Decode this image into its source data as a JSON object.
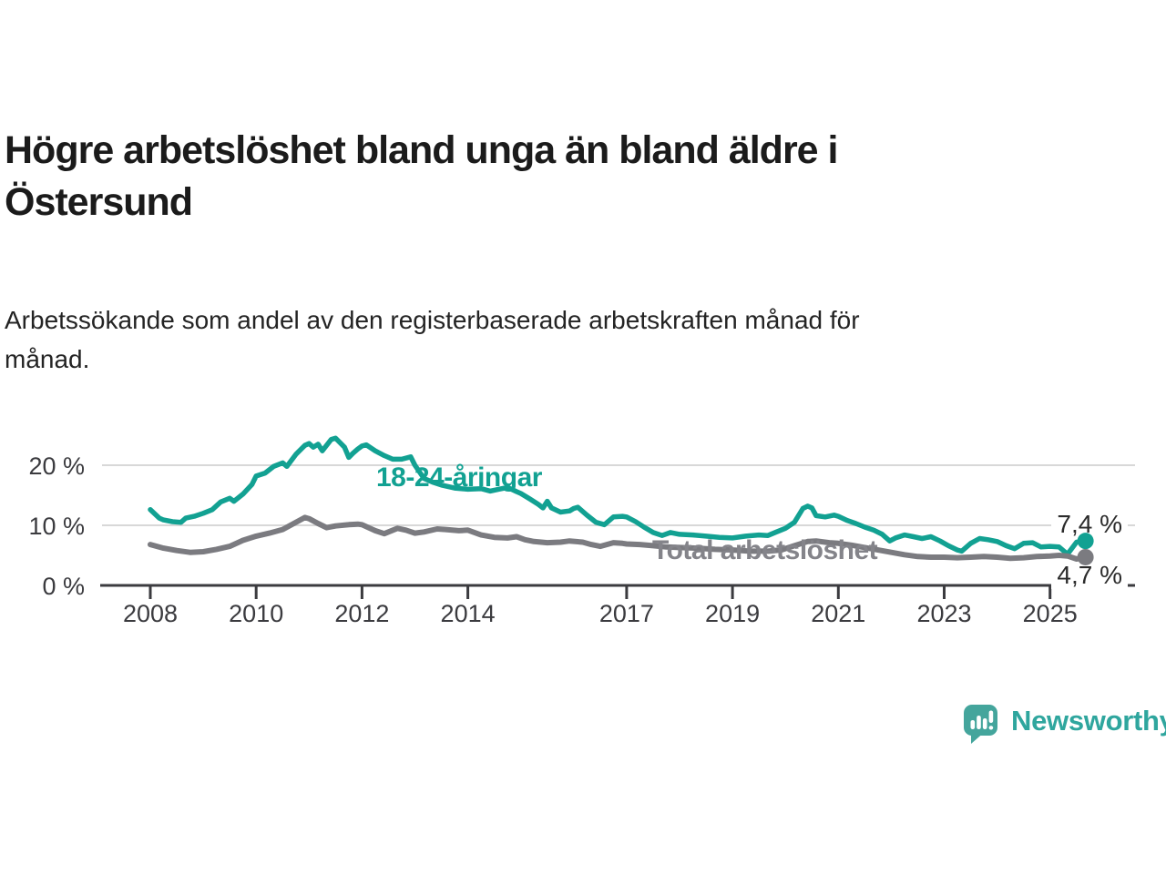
{
  "chart_data": {
    "type": "line",
    "title": "Högre arbetslöshet bland unga än bland äldre i\nÖstersund",
    "subtitle": "Arbetssökande som andel av den registerbaserade arbetskraften månad för\nmånad.",
    "unit": "%",
    "xlim": [
      2008,
      2025.75
    ],
    "ylim": [
      0,
      26
    ],
    "grid": "horizontal-only",
    "x_ticks": [
      2008,
      2010,
      2012,
      2014,
      2017,
      2019,
      2021,
      2023,
      2025
    ],
    "y_ticks": [
      {
        "value": 0,
        "label": "0 %"
      },
      {
        "value": 10,
        "label": "10 %"
      },
      {
        "value": 20,
        "label": "20 %"
      }
    ],
    "y_gridlines": [
      10,
      20
    ],
    "colors": {
      "young_line": "#12a192",
      "total_line": "#7b7b80",
      "total_label": "#84848a",
      "axis": "#3b3b3f",
      "gridline": "#d8d8d8"
    },
    "series": [
      {
        "name": "18-24-åringar",
        "color": "#12a192",
        "end_value": 7.4,
        "end_label": "7,4 %",
        "points": [
          [
            2008,
            12.6
          ],
          [
            2008.17,
            11.2
          ],
          [
            2008.25,
            10.9
          ],
          [
            2008.42,
            10.6
          ],
          [
            2008.58,
            10.5
          ],
          [
            2008.67,
            11.2
          ],
          [
            2008.83,
            11.5
          ],
          [
            2009,
            12
          ],
          [
            2009.17,
            12.6
          ],
          [
            2009.33,
            13.9
          ],
          [
            2009.5,
            14.5
          ],
          [
            2009.58,
            14
          ],
          [
            2009.75,
            15.2
          ],
          [
            2009.92,
            16.8
          ],
          [
            2010,
            18.2
          ],
          [
            2010.17,
            18.7
          ],
          [
            2010.33,
            19.8
          ],
          [
            2010.5,
            20.4
          ],
          [
            2010.58,
            19.8
          ],
          [
            2010.75,
            21.8
          ],
          [
            2010.92,
            23.3
          ],
          [
            2011,
            23.6
          ],
          [
            2011.08,
            23
          ],
          [
            2011.17,
            23.5
          ],
          [
            2011.25,
            22.4
          ],
          [
            2011.42,
            24.3
          ],
          [
            2011.5,
            24.5
          ],
          [
            2011.58,
            23.8
          ],
          [
            2011.67,
            23
          ],
          [
            2011.75,
            21.3
          ],
          [
            2011.83,
            22
          ],
          [
            2011.92,
            22.7
          ],
          [
            2012,
            23.2
          ],
          [
            2012.08,
            23.4
          ],
          [
            2012.25,
            22.4
          ],
          [
            2012.42,
            21.6
          ],
          [
            2012.58,
            21
          ],
          [
            2012.75,
            21
          ],
          [
            2012.92,
            21.4
          ],
          [
            2013,
            20
          ],
          [
            2013.17,
            17.8
          ],
          [
            2013.33,
            17.2
          ],
          [
            2013.5,
            16.7
          ],
          [
            2013.75,
            16.2
          ],
          [
            2014,
            16
          ],
          [
            2014.25,
            16.1
          ],
          [
            2014.42,
            15.7
          ],
          [
            2014.58,
            16
          ],
          [
            2014.75,
            16.3
          ],
          [
            2014.92,
            15.6
          ],
          [
            2015,
            15.3
          ],
          [
            2015.17,
            14.4
          ],
          [
            2015.33,
            13.5
          ],
          [
            2015.42,
            12.9
          ],
          [
            2015.5,
            14
          ],
          [
            2015.58,
            12.9
          ],
          [
            2015.75,
            12.2
          ],
          [
            2015.92,
            12.4
          ],
          [
            2016,
            12.8
          ],
          [
            2016.08,
            13
          ],
          [
            2016.25,
            11.7
          ],
          [
            2016.42,
            10.5
          ],
          [
            2016.58,
            10.1
          ],
          [
            2016.75,
            11.4
          ],
          [
            2016.92,
            11.5
          ],
          [
            2017,
            11.4
          ],
          [
            2017.17,
            10.6
          ],
          [
            2017.33,
            9.7
          ],
          [
            2017.5,
            8.8
          ],
          [
            2017.67,
            8.3
          ],
          [
            2017.83,
            8.8
          ],
          [
            2018,
            8.5
          ],
          [
            2018.25,
            8.4
          ],
          [
            2018.5,
            8.2
          ],
          [
            2018.75,
            8
          ],
          [
            2019,
            7.9
          ],
          [
            2019.25,
            8.2
          ],
          [
            2019.5,
            8.4
          ],
          [
            2019.67,
            8.3
          ],
          [
            2019.83,
            8.9
          ],
          [
            2020,
            9.5
          ],
          [
            2020.17,
            10.5
          ],
          [
            2020.33,
            12.8
          ],
          [
            2020.42,
            13.2
          ],
          [
            2020.5,
            12.9
          ],
          [
            2020.58,
            11.6
          ],
          [
            2020.75,
            11.4
          ],
          [
            2020.92,
            11.7
          ],
          [
            2021,
            11.5
          ],
          [
            2021.17,
            10.8
          ],
          [
            2021.33,
            10.3
          ],
          [
            2021.5,
            9.7
          ],
          [
            2021.67,
            9.2
          ],
          [
            2021.83,
            8.5
          ],
          [
            2021.97,
            7.4
          ],
          [
            2022.08,
            7.9
          ],
          [
            2022.25,
            8.4
          ],
          [
            2022.42,
            8.1
          ],
          [
            2022.58,
            7.8
          ],
          [
            2022.75,
            8.1
          ],
          [
            2022.92,
            7.4
          ],
          [
            2023.08,
            6.6
          ],
          [
            2023.25,
            5.9
          ],
          [
            2023.33,
            5.7
          ],
          [
            2023.5,
            7
          ],
          [
            2023.67,
            7.8
          ],
          [
            2023.83,
            7.6
          ],
          [
            2024,
            7.3
          ],
          [
            2024.17,
            6.6
          ],
          [
            2024.33,
            6.1
          ],
          [
            2024.5,
            7
          ],
          [
            2024.67,
            7.1
          ],
          [
            2024.83,
            6.4
          ],
          [
            2025,
            6.5
          ],
          [
            2025.17,
            6.4
          ],
          [
            2025.33,
            5.2
          ],
          [
            2025.5,
            7.2
          ],
          [
            2025.67,
            7.4
          ]
        ]
      },
      {
        "name": "Total arbetslöshet",
        "color": "#7b7b80",
        "label_color": "#84848a",
        "end_value": 4.7,
        "end_label": "4,7 %",
        "points": [
          [
            2008,
            6.8
          ],
          [
            2008.25,
            6.2
          ],
          [
            2008.5,
            5.8
          ],
          [
            2008.75,
            5.5
          ],
          [
            2009,
            5.6
          ],
          [
            2009.25,
            6
          ],
          [
            2009.5,
            6.5
          ],
          [
            2009.75,
            7.5
          ],
          [
            2010,
            8.2
          ],
          [
            2010.25,
            8.7
          ],
          [
            2010.5,
            9.3
          ],
          [
            2010.75,
            10.5
          ],
          [
            2010.92,
            11.3
          ],
          [
            2011,
            11.1
          ],
          [
            2011.17,
            10.3
          ],
          [
            2011.33,
            9.6
          ],
          [
            2011.5,
            9.9
          ],
          [
            2011.75,
            10.1
          ],
          [
            2011.92,
            10.2
          ],
          [
            2012,
            10.1
          ],
          [
            2012.25,
            9.1
          ],
          [
            2012.42,
            8.6
          ],
          [
            2012.67,
            9.5
          ],
          [
            2012.83,
            9.2
          ],
          [
            2013,
            8.7
          ],
          [
            2013.17,
            8.9
          ],
          [
            2013.42,
            9.4
          ],
          [
            2013.58,
            9.3
          ],
          [
            2013.83,
            9.1
          ],
          [
            2014,
            9.2
          ],
          [
            2014.25,
            8.4
          ],
          [
            2014.5,
            8
          ],
          [
            2014.75,
            7.9
          ],
          [
            2014.92,
            8.1
          ],
          [
            2015.08,
            7.6
          ],
          [
            2015.25,
            7.3
          ],
          [
            2015.5,
            7.1
          ],
          [
            2015.75,
            7.2
          ],
          [
            2015.92,
            7.4
          ],
          [
            2016.17,
            7.2
          ],
          [
            2016.33,
            6.8
          ],
          [
            2016.5,
            6.5
          ],
          [
            2016.75,
            7.1
          ],
          [
            2016.92,
            7
          ],
          [
            2017,
            6.9
          ],
          [
            2017.25,
            6.8
          ],
          [
            2017.5,
            6.6
          ],
          [
            2017.75,
            6.4
          ],
          [
            2018,
            6.3
          ],
          [
            2018.33,
            6.2
          ],
          [
            2018.67,
            6
          ],
          [
            2019,
            5.9
          ],
          [
            2019.33,
            5.7
          ],
          [
            2019.67,
            5.7
          ],
          [
            2019.92,
            5.9
          ],
          [
            2020.17,
            6.6
          ],
          [
            2020.42,
            7.3
          ],
          [
            2020.58,
            7.4
          ],
          [
            2020.83,
            7.1
          ],
          [
            2021,
            7
          ],
          [
            2021.25,
            6.7
          ],
          [
            2021.5,
            6.3
          ],
          [
            2021.75,
            5.9
          ],
          [
            2022,
            5.5
          ],
          [
            2022.25,
            5.1
          ],
          [
            2022.5,
            4.8
          ],
          [
            2022.75,
            4.7
          ],
          [
            2023,
            4.7
          ],
          [
            2023.25,
            4.6
          ],
          [
            2023.5,
            4.7
          ],
          [
            2023.75,
            4.8
          ],
          [
            2024,
            4.7
          ],
          [
            2024.25,
            4.5
          ],
          [
            2024.5,
            4.6
          ],
          [
            2024.75,
            4.8
          ],
          [
            2025,
            4.9
          ],
          [
            2025.17,
            5
          ],
          [
            2025.33,
            4.9
          ],
          [
            2025.5,
            4.4
          ],
          [
            2025.67,
            4.7
          ]
        ]
      }
    ]
  },
  "logo": {
    "name": "Newsworthy",
    "color": "#2fa69e",
    "icon": "newsworthy-speech-bubble-chart-icon"
  }
}
